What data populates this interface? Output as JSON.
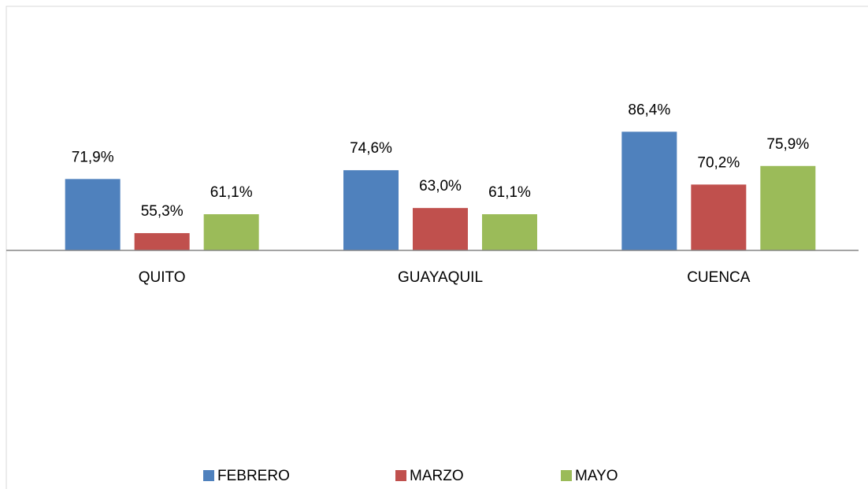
{
  "chart_data": {
    "type": "bar",
    "categories": [
      "QUITO",
      "GUAYAQUIL",
      "CUENCA"
    ],
    "series": [
      {
        "name": "FEBRERO",
        "color": "#4f81bd",
        "values": [
          71.9,
          74.6,
          86.4
        ],
        "value_labels": [
          "71,9%",
          "74,6%",
          "86,4%"
        ]
      },
      {
        "name": "MARZO",
        "color": "#c0504d",
        "values": [
          55.3,
          63.0,
          70.2
        ],
        "value_labels": [
          "55,3%",
          "63,0%",
          "70,2%"
        ]
      },
      {
        "name": "MAYO",
        "color": "#9bbb59",
        "values": [
          61.1,
          61.1,
          75.9
        ],
        "value_labels": [
          "61,1%",
          "61,1%",
          "75,9%"
        ]
      }
    ],
    "ylim": [
      50,
      100
    ],
    "legend": "bottom"
  }
}
